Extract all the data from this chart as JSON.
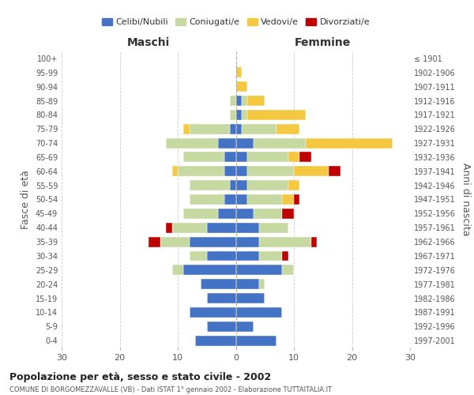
{
  "age_groups": [
    "0-4",
    "5-9",
    "10-14",
    "15-19",
    "20-24",
    "25-29",
    "30-34",
    "35-39",
    "40-44",
    "45-49",
    "50-54",
    "55-59",
    "60-64",
    "65-69",
    "70-74",
    "75-79",
    "80-84",
    "85-89",
    "90-94",
    "95-99",
    "100+"
  ],
  "birth_years": [
    "1997-2001",
    "1992-1996",
    "1987-1991",
    "1982-1986",
    "1977-1981",
    "1972-1976",
    "1967-1971",
    "1962-1966",
    "1957-1961",
    "1952-1956",
    "1947-1951",
    "1942-1946",
    "1937-1941",
    "1932-1936",
    "1927-1931",
    "1922-1926",
    "1917-1921",
    "1912-1916",
    "1907-1911",
    "1902-1906",
    "≤ 1901"
  ],
  "maschi": {
    "celibi": [
      7,
      5,
      8,
      5,
      6,
      9,
      5,
      8,
      5,
      3,
      2,
      1,
      2,
      2,
      3,
      1,
      0,
      0,
      0,
      0,
      0
    ],
    "coniugati": [
      0,
      0,
      0,
      0,
      0,
      2,
      3,
      5,
      6,
      6,
      6,
      7,
      8,
      7,
      9,
      7,
      1,
      1,
      0,
      0,
      0
    ],
    "vedovi": [
      0,
      0,
      0,
      0,
      0,
      0,
      0,
      0,
      0,
      0,
      0,
      0,
      1,
      0,
      0,
      1,
      0,
      0,
      0,
      0,
      0
    ],
    "divorziati": [
      0,
      0,
      0,
      0,
      0,
      0,
      0,
      2,
      1,
      0,
      0,
      0,
      0,
      0,
      0,
      0,
      0,
      0,
      0,
      0,
      0
    ]
  },
  "femmine": {
    "nubili": [
      7,
      3,
      8,
      5,
      4,
      8,
      4,
      4,
      4,
      3,
      2,
      2,
      2,
      2,
      3,
      1,
      1,
      1,
      0,
      0,
      0
    ],
    "coniugate": [
      0,
      0,
      0,
      0,
      1,
      2,
      4,
      9,
      5,
      5,
      6,
      7,
      8,
      7,
      9,
      6,
      1,
      1,
      0,
      0,
      0
    ],
    "vedove": [
      0,
      0,
      0,
      0,
      0,
      0,
      0,
      0,
      0,
      0,
      2,
      2,
      6,
      2,
      15,
      4,
      10,
      3,
      2,
      1,
      0
    ],
    "divorziate": [
      0,
      0,
      0,
      0,
      0,
      0,
      1,
      1,
      0,
      2,
      1,
      0,
      2,
      2,
      0,
      0,
      0,
      0,
      0,
      0,
      0
    ]
  },
  "colors": {
    "celibi_nubili": "#4472C4",
    "coniugati": "#C5D9A0",
    "vedovi": "#F5C842",
    "divorziati": "#C00000"
  },
  "xlim": 30,
  "title": "Popolazione per età, sesso e stato civile - 2002",
  "subtitle": "COMUNE DI BORGOMEZZAVALLE (VB) - Dati ISTAT 1° gennaio 2002 - Elaborazione TUTTAITALIA.IT",
  "ylabel_left": "Fasce di età",
  "ylabel_right": "Anni di nascita",
  "xlabel_left": "Maschi",
  "xlabel_right": "Femmine",
  "bg_color": "#FFFFFF",
  "grid_color": "#CCCCCC"
}
